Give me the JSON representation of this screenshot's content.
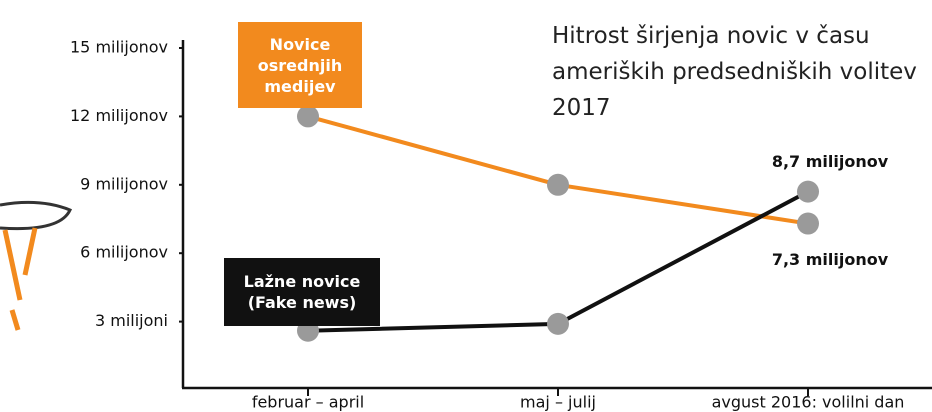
{
  "chart_data": {
    "type": "line",
    "title": "Hitrost širjenja novic v času ameriških predsedniških volitev 2017",
    "categories": [
      "februar – april",
      "maj – julij",
      "avgust 2016: volilni dan"
    ],
    "series": [
      {
        "name": "Novice osrednjih medijev",
        "color": "#f28a1e",
        "values": [
          12,
          9,
          7.3
        ],
        "value_labels": [
          null,
          null,
          "7,3 milijonov"
        ]
      },
      {
        "name": "Lažne novice (Fake news)",
        "color": "#111111",
        "values": [
          2.6,
          2.9,
          8.7
        ],
        "value_labels": [
          null,
          null,
          "8,7 milijonov"
        ]
      }
    ],
    "marker_color": "#9a9a9a",
    "ylim": [
      0,
      15
    ],
    "yticks": [
      {
        "value": 3,
        "label": "3 milijoni"
      },
      {
        "value": 6,
        "label": "6 milijonov"
      },
      {
        "value": 9,
        "label": "9 milijonov"
      },
      {
        "value": 12,
        "label": "12 milijonov"
      },
      {
        "value": 15,
        "label": "15 milijonov"
      }
    ],
    "grid": false
  }
}
